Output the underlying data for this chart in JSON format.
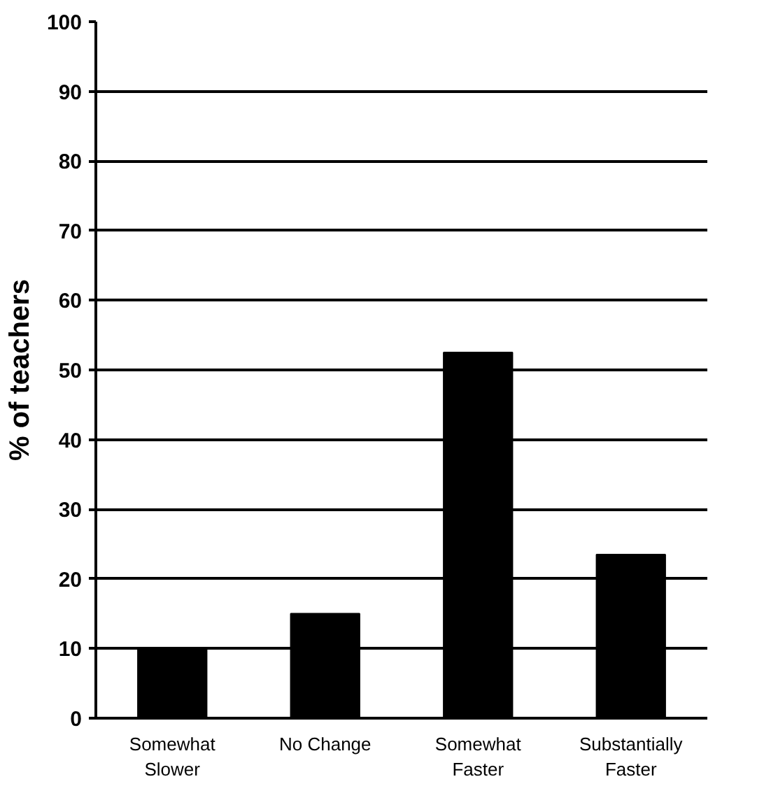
{
  "chart_data": {
    "type": "bar",
    "ylabel": "% of teachers",
    "categories": [
      "Somewhat Slower",
      "No Change",
      "Somewhat Faster",
      "Substantially Faster"
    ],
    "values": [
      10,
      15,
      52.5,
      23.5
    ],
    "color": "#000000",
    "ylim": [
      0,
      100
    ],
    "yticks": [
      0,
      10,
      20,
      30,
      40,
      50,
      60,
      70,
      80,
      90,
      100
    ],
    "grid": "y"
  }
}
